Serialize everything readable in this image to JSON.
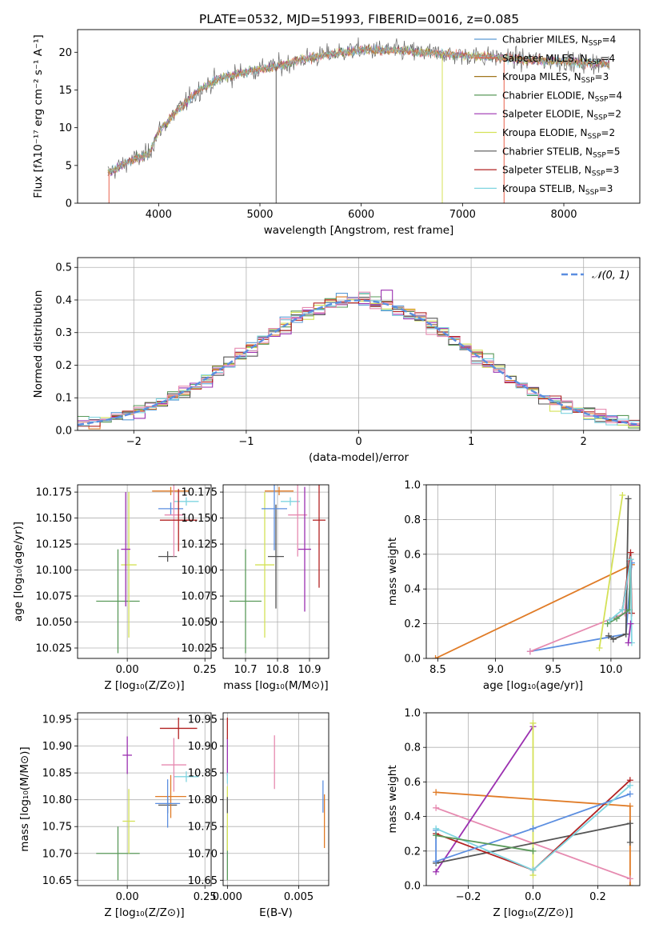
{
  "figure": {
    "title": "PLATE=0532, MJD=51993, FIBERID=0016, z=0.085"
  },
  "chart_data": [
    {
      "id": "spectrum",
      "type": "line",
      "xlabel": "wavelength [Angstrom, rest frame]",
      "ylabel": "Flux [fλ10⁻¹⁷ erg cm⁻² s⁻¹ A⁻¹]",
      "xlim": [
        3200,
        8750
      ],
      "ylim": [
        0,
        23
      ],
      "xticks": [
        4000,
        5000,
        6000,
        7000,
        8000
      ],
      "yticks": [
        0,
        5,
        10,
        15,
        20
      ],
      "grid": false,
      "legend_position": "top-right",
      "legend": [
        {
          "name": "Chabrier MILES, N_SSP=4",
          "base": "Chabrier MILES, N",
          "sub": "SSP",
          "tail": "=4",
          "color": "#5b9bd5"
        },
        {
          "name": "Salpeter MILES, N_SSP=4",
          "base": "Salpeter MILES, N",
          "sub": "SSP",
          "tail": "=4",
          "color": "#e8604c"
        },
        {
          "name": "Kroupa MILES, N_SSP=3",
          "base": "Kroupa MILES, N",
          "sub": "SSP",
          "tail": "=3",
          "color": "#a0761d"
        },
        {
          "name": "Chabrier ELODIE, N_SSP=4",
          "base": "Chabrier ELODIE, N",
          "sub": "SSP",
          "tail": "=4",
          "color": "#5a9a5a"
        },
        {
          "name": "Salpeter ELODIE, N_SSP=2",
          "base": "Salpeter ELODIE, N",
          "sub": "SSP",
          "tail": "=2",
          "color": "#9b30b0"
        },
        {
          "name": "Kroupa ELODIE, N_SSP=2",
          "base": "Kroupa ELODIE, N",
          "sub": "SSP",
          "tail": "=2",
          "color": "#d4e157"
        },
        {
          "name": "Chabrier STELIB, N_SSP=5",
          "base": "Chabrier STELIB, N",
          "sub": "SSP",
          "tail": "=5",
          "color": "#555555"
        },
        {
          "name": "Salpeter STELIB, N_SSP=3",
          "base": "Salpeter STELIB, N",
          "sub": "SSP",
          "tail": "=3",
          "color": "#b22222"
        },
        {
          "name": "Kroupa STELIB, N_SSP=3",
          "base": "Kroupa STELIB, N",
          "sub": "SSP",
          "tail": "=3",
          "color": "#7fd4e0"
        }
      ],
      "continuum_x": [
        3500,
        3700,
        3900,
        4000,
        4200,
        4400,
        4600,
        4800,
        5000,
        5200,
        5400,
        5600,
        5800,
        6000,
        6200,
        6400,
        6600,
        6800,
        7000,
        7200,
        7400,
        7600,
        7800,
        8000,
        8200,
        8400
      ],
      "continuum_y": [
        4.0,
        5.5,
        6.5,
        9.5,
        12.5,
        15.0,
        16.5,
        17.2,
        17.8,
        18.2,
        19.0,
        19.5,
        20.0,
        20.3,
        20.3,
        20.2,
        20.0,
        19.8,
        19.6,
        19.4,
        19.3,
        19.0,
        18.9,
        18.8,
        18.6,
        18.5
      ],
      "noise_amplitude": 1.6,
      "spikes": [
        {
          "x": 3510,
          "color": "#e8604c"
        },
        {
          "x": 5160,
          "color": "#555555"
        },
        {
          "x": 6800,
          "color": "#d4e157"
        },
        {
          "x": 7410,
          "color": "#e8604c"
        }
      ]
    },
    {
      "id": "residuals",
      "type": "histogram",
      "xlabel": "(data-model)/error",
      "ylabel": "Normed distribution",
      "xlim": [
        -2.5,
        2.5
      ],
      "ylim": [
        0,
        0.53
      ],
      "xticks": [
        -2,
        -1,
        0,
        1,
        2
      ],
      "yticks": [
        0.0,
        0.1,
        0.2,
        0.3,
        0.4,
        0.5
      ],
      "grid": true,
      "legend_position": "top-right",
      "legend_label": "𝒩(0, 1)",
      "bins": 50,
      "bin_width": 0.1,
      "reference_curve": {
        "name": "N(0,1)",
        "mean": 0,
        "sigma": 1,
        "color": "#5b8ee0",
        "style": "dashed"
      },
      "series_colors": [
        "#5b9bd5",
        "#e07b26",
        "#5a9a5a",
        "#9b30b0",
        "#d4e157",
        "#555555",
        "#b22222",
        "#7fd4e0",
        "#e68ab0"
      ]
    },
    {
      "id": "age-vs-z",
      "type": "errorbar",
      "xlabel": "Z [log₁₀(Z/Z⊙)]",
      "ylabel": "age  [log₁₀(age/yr)]",
      "xlim": [
        -0.16,
        0.27
      ],
      "ylim": [
        10.015,
        10.182
      ],
      "xticks": [
        0.0,
        0.25
      ],
      "xtick_labels": [
        "0.00",
        "0.25"
      ],
      "yticks": [
        10.025,
        10.05,
        10.075,
        10.1,
        10.125,
        10.15,
        10.175
      ],
      "grid": true,
      "points": [
        {
          "x": -0.03,
          "y": 10.07,
          "xerr": 0.07,
          "yerr": 0.05,
          "color": "#5a9a5a"
        },
        {
          "x": 0.005,
          "y": 10.105,
          "xerr": 0.025,
          "yerr": 0.07,
          "color": "#d4e157"
        },
        {
          "x": -0.005,
          "y": 10.12,
          "xerr": 0.015,
          "yerr": 0.055,
          "color": "#9b30b0"
        },
        {
          "x": 0.13,
          "y": 10.113,
          "xerr": 0.03,
          "yerr": 0.005,
          "color": "#555555"
        },
        {
          "x": 0.14,
          "y": 10.176,
          "xerr": 0.06,
          "yerr": 0.004,
          "color": "#e07b26"
        },
        {
          "x": 0.14,
          "y": 10.159,
          "xerr": 0.04,
          "yerr": 0.006,
          "color": "#5b8ee0"
        },
        {
          "x": 0.19,
          "y": 10.166,
          "xerr": 0.04,
          "yerr": 0.004,
          "color": "#7fd4e0"
        },
        {
          "x": 0.15,
          "y": 10.153,
          "xerr": 0.03,
          "yerr": 0.04,
          "color": "#e68ab0"
        },
        {
          "x": 0.165,
          "y": 10.148,
          "xerr": 0.06,
          "yerr": 0.03,
          "color": "#b22222"
        }
      ]
    },
    {
      "id": "age-vs-mass",
      "type": "errorbar",
      "xlabel": "mass [log₁₀(M/M⊙)]",
      "ylabel": "",
      "xlim": [
        10.63,
        10.96
      ],
      "ylim": [
        10.015,
        10.182
      ],
      "xticks": [
        10.7,
        10.8,
        10.9
      ],
      "xtick_labels": [
        "10.7",
        "10.8",
        "10.9"
      ],
      "yticks": [
        10.025,
        10.05,
        10.075,
        10.1,
        10.125,
        10.15,
        10.175
      ],
      "grid": true,
      "points": [
        {
          "x": 10.7,
          "y": 10.07,
          "xerr": 0.05,
          "yerr": 0.05,
          "color": "#5a9a5a"
        },
        {
          "x": 10.76,
          "y": 10.105,
          "xerr": 0.03,
          "yerr": 0.07,
          "color": "#d4e157"
        },
        {
          "x": 10.795,
          "y": 10.113,
          "xerr": 0.025,
          "yerr": 0.05,
          "color": "#555555"
        },
        {
          "x": 10.805,
          "y": 10.176,
          "xerr": 0.045,
          "yerr": 0.004,
          "color": "#e07b26"
        },
        {
          "x": 10.79,
          "y": 10.159,
          "xerr": 0.04,
          "yerr": 0.04,
          "color": "#5b8ee0"
        },
        {
          "x": 10.84,
          "y": 10.166,
          "xerr": 0.03,
          "yerr": 0.004,
          "color": "#7fd4e0"
        },
        {
          "x": 10.863,
          "y": 10.153,
          "xerr": 0.03,
          "yerr": 0.04,
          "color": "#e68ab0"
        },
        {
          "x": 10.885,
          "y": 10.12,
          "xerr": 0.02,
          "yerr": 0.06,
          "color": "#9b30b0"
        },
        {
          "x": 10.93,
          "y": 10.148,
          "xerr": 0.02,
          "yerr": 0.065,
          "color": "#b22222"
        }
      ]
    },
    {
      "id": "weight-vs-age",
      "type": "line",
      "xlabel": "age  [log₁₀(age/yr)]",
      "ylabel": "mass weight",
      "xlim": [
        8.4,
        10.25
      ],
      "ylim": [
        0,
        1
      ],
      "xticks": [
        8.5,
        9.0,
        9.5,
        10.0
      ],
      "xtick_labels": [
        "8.5",
        "9.0",
        "9.5",
        "10.0"
      ],
      "yticks": [
        0.0,
        0.2,
        0.4,
        0.6,
        0.8,
        1.0
      ],
      "grid": true,
      "series": [
        {
          "color": "#e07b26",
          "x": [
            8.48,
            10.18
          ],
          "y": [
            0.0,
            0.54
          ]
        },
        {
          "color": "#5b8ee0",
          "x": [
            9.3,
            10.13,
            10.18
          ],
          "y": [
            0.04,
            0.14,
            0.55
          ]
        },
        {
          "color": "#e68ab0",
          "x": [
            9.3,
            10.12,
            10.16
          ],
          "y": [
            0.04,
            0.26,
            0.56
          ]
        },
        {
          "color": "#d4e157",
          "x": [
            9.9,
            10.1
          ],
          "y": [
            0.06,
            0.94
          ]
        },
        {
          "color": "#555555",
          "x": [
            9.98,
            10.02,
            10.13,
            10.15
          ],
          "y": [
            0.13,
            0.11,
            0.14,
            0.92
          ]
        },
        {
          "color": "#b22222",
          "x": [
            10.1,
            10.17,
            10.18
          ],
          "y": [
            0.28,
            0.61,
            0.26
          ]
        },
        {
          "color": "#5a9a5a",
          "x": [
            9.97,
            10.05,
            10.16,
            10.17
          ],
          "y": [
            0.2,
            0.23,
            0.28,
            0.57
          ]
        },
        {
          "color": "#7fd4e0",
          "x": [
            9.99,
            10.1,
            10.17,
            10.18
          ],
          "y": [
            0.22,
            0.28,
            0.57,
            0.09
          ]
        },
        {
          "color": "#9b30b0",
          "x": [
            10.15,
            10.17
          ],
          "y": [
            0.09,
            0.2
          ]
        }
      ]
    },
    {
      "id": "mass-vs-z",
      "type": "errorbar",
      "xlabel": "Z [log₁₀(Z/Z⊙)]",
      "ylabel": "mass [log₁₀(M/M⊙)]",
      "xlim": [
        -0.16,
        0.27
      ],
      "ylim": [
        10.64,
        10.962
      ],
      "xticks": [
        0.0,
        0.25
      ],
      "xtick_labels": [
        "0.00",
        "0.25"
      ],
      "yticks": [
        10.65,
        10.7,
        10.75,
        10.8,
        10.85,
        10.9,
        10.95
      ],
      "grid": true,
      "points": [
        {
          "x": -0.03,
          "y": 10.7,
          "xerr": 0.07,
          "yerr": 0.05,
          "color": "#5a9a5a"
        },
        {
          "x": 0.0,
          "y": 10.883,
          "xerr": 0.015,
          "yerr": 0.035,
          "color": "#9b30b0"
        },
        {
          "x": 0.005,
          "y": 10.76,
          "xerr": 0.02,
          "yerr": 0.06,
          "color": "#d4e157"
        },
        {
          "x": 0.13,
          "y": 10.79,
          "xerr": 0.03,
          "yerr": 0.015,
          "color": "#555555"
        },
        {
          "x": 0.14,
          "y": 10.806,
          "xerr": 0.05,
          "yerr": 0.04,
          "color": "#e07b26"
        },
        {
          "x": 0.13,
          "y": 10.793,
          "xerr": 0.04,
          "yerr": 0.045,
          "color": "#5b8ee0"
        },
        {
          "x": 0.19,
          "y": 10.843,
          "xerr": 0.04,
          "yerr": 0.01,
          "color": "#7fd4e0"
        },
        {
          "x": 0.15,
          "y": 10.865,
          "xerr": 0.04,
          "yerr": 0.05,
          "color": "#e68ab0"
        },
        {
          "x": 0.165,
          "y": 10.933,
          "xerr": 0.06,
          "yerr": 0.02,
          "color": "#b22222"
        }
      ]
    },
    {
      "id": "mass-vs-ebv",
      "type": "errorbar",
      "xlabel": "E(B-V)",
      "ylabel": "",
      "xlim": [
        -0.0003,
        0.0071
      ],
      "ylim": [
        10.64,
        10.962
      ],
      "xticks": [
        0.0,
        0.005
      ],
      "xtick_labels": [
        "0.000",
        "0.005"
      ],
      "yticks": [
        10.65,
        10.7,
        10.75,
        10.8,
        10.85,
        10.9,
        10.95
      ],
      "grid": true,
      "points": [
        {
          "x": 0.0,
          "y": 10.7,
          "xerr": 0,
          "yerr": 0.05,
          "color": "#5a9a5a"
        },
        {
          "x": 0.0,
          "y": 10.765,
          "xerr": 0,
          "yerr": 0.06,
          "color": "#d4e157"
        },
        {
          "x": 0.0,
          "y": 10.79,
          "xerr": 0,
          "yerr": 0.015,
          "color": "#555555"
        },
        {
          "x": 0.0,
          "y": 10.88,
          "xerr": 0,
          "yerr": 0.035,
          "color": "#9b30b0"
        },
        {
          "x": 0.0,
          "y": 10.933,
          "xerr": 0,
          "yerr": 0.02,
          "color": "#b22222"
        },
        {
          "x": 0.0,
          "y": 10.84,
          "xerr": 0,
          "yerr": 0.01,
          "color": "#7fd4e0"
        },
        {
          "x": 0.0033,
          "y": 10.87,
          "xerr": 0,
          "yerr": 0.05,
          "color": "#e68ab0"
        },
        {
          "x": 0.0067,
          "y": 10.806,
          "xerr": 0,
          "yerr": 0.03,
          "color": "#5b8ee0"
        },
        {
          "x": 0.0068,
          "y": 10.76,
          "xerr": 0,
          "yerr": 0.05,
          "color": "#e07b26"
        }
      ]
    },
    {
      "id": "weight-vs-z",
      "type": "line",
      "xlabel": "Z [log₁₀(Z/Z⊙)]",
      "ylabel": "mass weight",
      "xlim": [
        -0.33,
        0.33
      ],
      "ylim": [
        0,
        1
      ],
      "xticks": [
        -0.2,
        0.0,
        0.2
      ],
      "xtick_labels": [
        "−0.2",
        "0.0",
        "0.2"
      ],
      "yticks": [
        0.0,
        0.2,
        0.4,
        0.6,
        0.8,
        1.0
      ],
      "grid": true,
      "series": [
        {
          "color": "#e07b26",
          "x": [
            -0.3,
            0.3,
            0.3
          ],
          "y": [
            0.54,
            0.46,
            0.0
          ]
        },
        {
          "color": "#e68ab0",
          "x": [
            -0.3,
            0.3
          ],
          "y": [
            0.45,
            0.04
          ]
        },
        {
          "color": "#9b30b0",
          "x": [
            -0.3,
            0.0
          ],
          "y": [
            0.08,
            0.92
          ]
        },
        {
          "color": "#d4e157",
          "x": [
            0.0,
            0.0
          ],
          "y": [
            0.06,
            0.94
          ]
        },
        {
          "color": "#555555",
          "x": [
            -0.3,
            0.3,
            0.3
          ],
          "y": [
            0.13,
            0.36,
            0.25
          ]
        },
        {
          "color": "#b22222",
          "x": [
            -0.3,
            0.0,
            0.3
          ],
          "y": [
            0.3,
            0.09,
            0.61
          ]
        },
        {
          "color": "#5b8ee0",
          "x": [
            -0.3,
            -0.3,
            0.0,
            0.3
          ],
          "y": [
            0.32,
            0.14,
            0.33,
            0.53
          ]
        },
        {
          "color": "#7fd4e0",
          "x": [
            -0.3,
            0.0,
            0.3
          ],
          "y": [
            0.33,
            0.09,
            0.58
          ]
        },
        {
          "color": "#5a9a5a",
          "x": [
            -0.3,
            0.0
          ],
          "y": [
            0.29,
            0.2
          ]
        }
      ]
    }
  ]
}
